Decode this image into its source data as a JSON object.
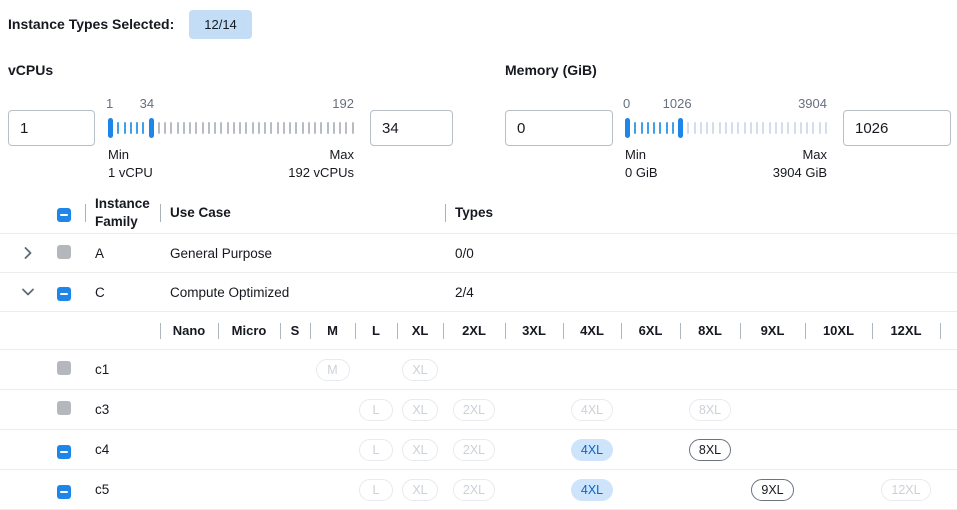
{
  "header": {
    "label": "Instance Types Selected:",
    "badge": "12/14"
  },
  "filters": [
    {
      "id": "vcpus",
      "title": "vCPUs",
      "min_input": "1",
      "max_input": "34",
      "tick_labels": [
        "1",
        "34",
        "192"
      ],
      "min_label": "Min",
      "min_value": "1 vCPU",
      "max_label": "Max",
      "max_value": "192 vCPUs",
      "slider": {
        "ticks": 39,
        "handle1": 0,
        "handle2": 6
      }
    },
    {
      "id": "memory",
      "title": "Memory (GiB)",
      "min_input": "0",
      "max_input": "1026",
      "tick_labels": [
        "0",
        "1026",
        "3904"
      ],
      "min_label": "Min",
      "min_value": "0 GiB",
      "max_label": "Max",
      "max_value": "3904 GiB",
      "slider": {
        "ticks": 32,
        "handle1": 0,
        "handle2": 8
      }
    }
  ],
  "table": {
    "header_checkbox": "indeterminate",
    "columns": [
      "Instance Family",
      "Use Case",
      "Types"
    ],
    "family_rows": [
      {
        "family": "A",
        "use_case": "General Purpose",
        "types": "0/0",
        "expanded": false,
        "checkbox": "disabled"
      },
      {
        "family": "C",
        "use_case": "Compute Optimized",
        "types": "2/4",
        "expanded": true,
        "checkbox": "indeterminate"
      }
    ],
    "sizes": [
      "Nano",
      "Micro",
      "S",
      "M",
      "L",
      "XL",
      "2XL",
      "3XL",
      "4XL",
      "6XL",
      "8XL",
      "9XL",
      "10XL",
      "12XL"
    ],
    "instance_rows": [
      {
        "name": "c1",
        "checkbox": "disabled",
        "pills": {
          "M": "disabled",
          "XL": "disabled"
        }
      },
      {
        "name": "c3",
        "checkbox": "disabled",
        "pills": {
          "L": "disabled",
          "XL": "disabled",
          "2XL": "disabled",
          "4XL": "disabled",
          "8XL": "disabled"
        }
      },
      {
        "name": "c4",
        "checkbox": "indeterminate",
        "pills": {
          "L": "disabled",
          "XL": "disabled",
          "2XL": "disabled",
          "4XL": "selected",
          "8XL": "enabled"
        }
      },
      {
        "name": "c5",
        "checkbox": "indeterminate",
        "pills": {
          "L": "disabled",
          "XL": "disabled",
          "2XL": "disabled",
          "4XL": "selected",
          "9XL": "enabled",
          "12XL": "disabled"
        }
      }
    ]
  },
  "icons": {
    "collapsed_row": "chevron-right-icon",
    "expanded_row": "chevron-down-icon",
    "checkbox_indeterminate": "minus-icon"
  },
  "colors": {
    "accent": "#1e86e8",
    "badge_bg": "#c3ddf6",
    "selected_pill_bg": "#cde4fb",
    "selected_pill_text": "#0b64c8",
    "tick_in_range": "#3f9fe8",
    "tick_out_vcpus": "#b6bcc2",
    "tick_out_memory": "#d4dcee",
    "disabled_checkbox": "#b4b7bb",
    "row_divider": "#eaeded"
  }
}
